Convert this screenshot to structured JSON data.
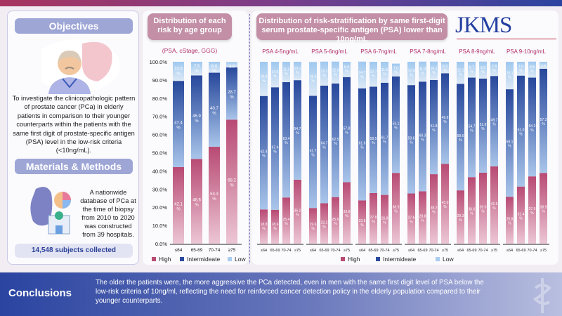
{
  "left": {
    "objectives_title": "Objectives",
    "objectives_text": "To investigate the clinicopathologic pattern of prostate cancer (PCa) in elderly patients in comparison to their younger counterparts within the patients with the same first digit of prostate-specific antigen (PSA) level in the low-risk criteria (<10ng/mL).",
    "methods_title": "Materials & Methods",
    "methods_text": "A nationwide database of PCa at the time of biopsy from 2010 to 2020 was constructed from 39 hospitals.",
    "subjects": "14,548 subjects collected"
  },
  "middle": {
    "title": "Distribution of each risk by age group",
    "subtitle": "(PSA, cStage, GGG)"
  },
  "right": {
    "title": "Distribution of risk-stratification by same first-digit serum prostate-specific antigen (PSA) lower than 10ng/mL"
  },
  "logo": "JKMS",
  "conclusions": {
    "title": "Conclusions",
    "text": "The older the patients were, the more aggressive the PCa detected, even in men with the same first digit level of PSA below the low-risk criteria of 10ng/ml, reflecting the need for reinforced cancer detection policy in the elderly population compared to their younger counterparts."
  },
  "colors": {
    "high": "#b84a73",
    "intermediate": "#2a4a9c",
    "low": "#a9cdef"
  },
  "chart_data": [
    {
      "type": "bar",
      "stacked": true,
      "title": "Distribution of each risk by age group",
      "categories": [
        "≤64",
        "65-69",
        "70-74",
        "≥75"
      ],
      "yticks": [
        "0.0%",
        "10.0%",
        "20.0%",
        "30.0%",
        "40.0%",
        "50.0%",
        "60.0%",
        "70.0%",
        "80.0%",
        "90.0%",
        "100.0%"
      ],
      "ylim": [
        0,
        100
      ],
      "legend": [
        "High",
        "Intermideate",
        "Low"
      ],
      "series": [
        {
          "name": "High",
          "values": [
            42.1,
            46.6,
            53.3,
            68.2
          ]
        },
        {
          "name": "Intermideate",
          "values": [
            47.4,
            45.9,
            40.7,
            28.7
          ]
        },
        {
          "name": "Low",
          "values": [
            10.5,
            7.5,
            6.0,
            3.0
          ]
        }
      ]
    },
    {
      "type": "bar",
      "stacked": true,
      "title": "Distribution of risk-stratification by same first-digit serum PSA lower than 10ng/mL",
      "categories": [
        "≤64",
        "65-69",
        "70-74",
        "≥75"
      ],
      "ylim": [
        0,
        100
      ],
      "legend": [
        "High",
        "Intermideate",
        "Low"
      ],
      "groups": [
        {
          "label": "PSA 4-5ng/mL",
          "high": [
            18.8,
            18.6,
            25.4,
            35.2
          ],
          "intermediate": [
            62.4,
            67.4,
            63.4,
            54.7
          ],
          "low": [
            18.8,
            14.0,
            11.2,
            10.1
          ]
        },
        {
          "label": "PSA 5-6ng/mL",
          "high": [
            19.6,
            22.2,
            25.6,
            33.8
          ],
          "intermediate": [
            61.7,
            64.7,
            62.5,
            57.8
          ],
          "low": [
            18.6,
            13.2,
            12.0,
            8.4
          ]
        },
        {
          "label": "PSA 6-7ng/mL",
          "high": [
            23.8,
            27.8,
            26.8,
            38.9
          ],
          "intermediate": [
            61.6,
            58.5,
            61.7,
            53.1
          ],
          "low": [
            14.7,
            13.7,
            11.5,
            7.0
          ]
        },
        {
          "label": "PSA 7-8ng/mL",
          "high": [
            27.6,
            28.8,
            38.2,
            43.9
          ],
          "intermediate": [
            59.6,
            60.3,
            51.8,
            49.8
          ],
          "low": [
            12.8,
            11.0,
            10.1,
            6.3
          ]
        },
        {
          "label": "PSA 8-9ng/mL",
          "high": [
            29.3,
            36.6,
            39.0,
            42.5
          ],
          "intermediate": [
            58.6,
            54.7,
            51.8,
            49.7
          ],
          "low": [
            12.1,
            8.7,
            9.3,
            7.8
          ]
        },
        {
          "label": "PSA 9-10ng/mL",
          "high": [
            25.8,
            31.4,
            37.0,
            38.9
          ],
          "intermediate": [
            59.1,
            61.0,
            54.3,
            57.3
          ],
          "low": [
            15.1,
            7.6,
            8.8,
            3.8
          ]
        }
      ]
    }
  ]
}
